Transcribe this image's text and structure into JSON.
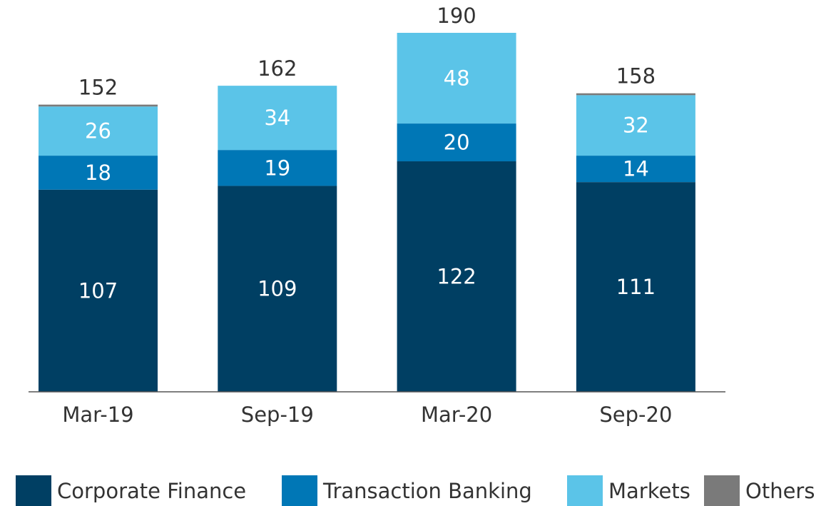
{
  "chart_data": {
    "type": "stacked_bar",
    "categories": [
      "Mar-19",
      "Sep-19",
      "Mar-20",
      "Sep-20"
    ],
    "series": [
      {
        "name": "Corporate Finance",
        "color": "#003f63",
        "values": [
          107,
          109,
          122,
          111
        ]
      },
      {
        "name": "Transaction Banking",
        "color": "#0077b6",
        "values": [
          18,
          19,
          20,
          14
        ]
      },
      {
        "name": "Markets",
        "color": "#5bc4e8",
        "values": [
          26,
          34,
          48,
          32
        ]
      },
      {
        "name": "Others",
        "color": "#7a7a7a",
        "values": [
          1,
          0,
          0,
          1
        ]
      }
    ],
    "totals": [
      152,
      162,
      190,
      158
    ],
    "labeled_series": [
      0,
      1,
      2
    ]
  }
}
